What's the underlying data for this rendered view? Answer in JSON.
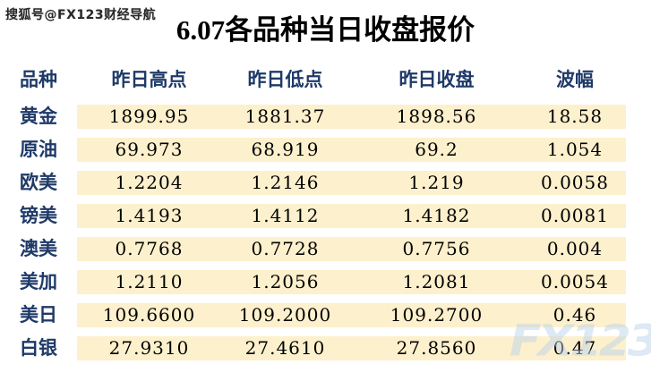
{
  "page": {
    "watermark_top": "搜狐号@FX123财经导航",
    "watermark_logo": "FX123",
    "title": "6.07各品种当日收盘报价"
  },
  "chart_data": {
    "type": "table",
    "title": "6.07各品种当日收盘报价",
    "columns": [
      "品种",
      "昨日高点",
      "昨日低点",
      "昨日收盘",
      "波幅"
    ],
    "rows": [
      {
        "name": "黄金",
        "values": [
          "1899.95",
          "1881.37",
          "1898.56",
          "18.58"
        ]
      },
      {
        "name": "原油",
        "values": [
          "69.973",
          "68.919",
          "69.2",
          "1.054"
        ]
      },
      {
        "name": "欧美",
        "values": [
          "1.2204",
          "1.2146",
          "1.219",
          "0.0058"
        ]
      },
      {
        "name": "镑美",
        "values": [
          "1.4193",
          "1.4112",
          "1.4182",
          "0.0081"
        ]
      },
      {
        "name": "澳美",
        "values": [
          "0.7768",
          "0.7728",
          "0.7756",
          "0.004"
        ]
      },
      {
        "name": "美加",
        "values": [
          "1.2110",
          "1.2056",
          "1.2081",
          "0.0054"
        ]
      },
      {
        "name": "美日",
        "values": [
          "109.6600",
          "109.2000",
          "109.2700",
          "0.46"
        ]
      },
      {
        "name": "白银",
        "values": [
          "27.9310",
          "27.4610",
          "27.8560",
          "0.47"
        ]
      }
    ]
  },
  "colors": {
    "row_background": "#fdf0cd",
    "header_text": "#1f3a68",
    "title_text": "#000000",
    "logo_watermark": "#bcd4ea"
  }
}
